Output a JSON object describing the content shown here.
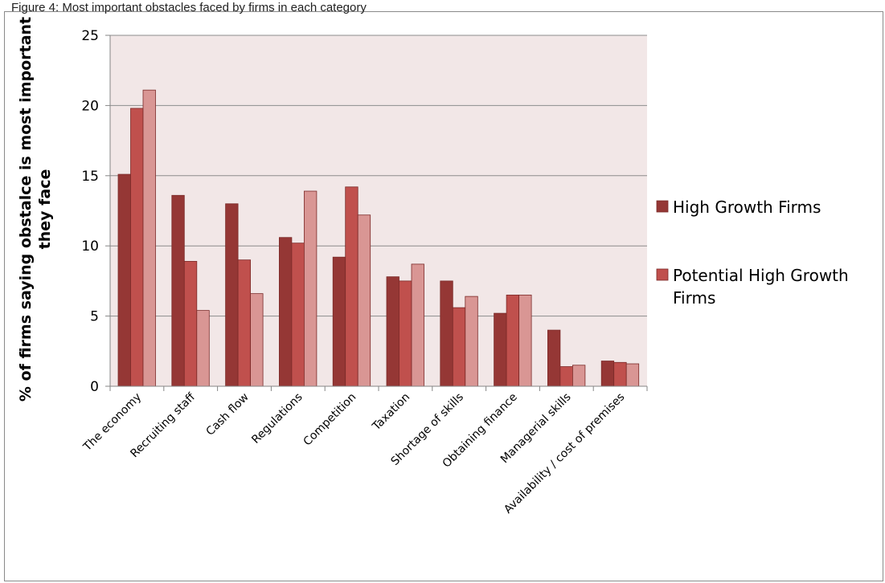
{
  "caption": "Figure 4: Most important obstacles faced by firms in each category",
  "chart_data": {
    "type": "bar",
    "categories": [
      "The economy",
      "Recruiting staff",
      "Cash flow",
      "Regulations",
      "Competition",
      "Taxation",
      "Shortage of skills",
      "Obtaining finance",
      "Managerial skills",
      "Availability / cost of premises"
    ],
    "series": [
      {
        "name": "High Growth Firms",
        "values": [
          15.1,
          13.6,
          13.0,
          10.6,
          9.2,
          7.8,
          7.5,
          5.2,
          4.0,
          1.8
        ],
        "color": "#953735"
      },
      {
        "name": "Potential High Growth Firms",
        "values": [
          19.8,
          8.9,
          9.0,
          10.2,
          14.2,
          7.5,
          5.6,
          6.5,
          1.4,
          1.7
        ],
        "color": "#c0504d"
      },
      {
        "name": "",
        "values": [
          21.1,
          5.4,
          6.6,
          13.9,
          12.2,
          8.7,
          6.4,
          6.5,
          1.5,
          1.6
        ],
        "color": "#d99694"
      }
    ],
    "ylabel_lines": [
      "% of firms saying obstalce is most important",
      "they face"
    ],
    "ylim": [
      0,
      25
    ],
    "yticks": [
      0,
      5,
      10,
      15,
      20,
      25
    ],
    "grid": true,
    "plot_background": "#f2e7e7",
    "legend_position": "right",
    "legend_lines": [
      [
        "High Growth Firms"
      ],
      [
        "Potential High Growth",
        "Firms"
      ]
    ]
  }
}
